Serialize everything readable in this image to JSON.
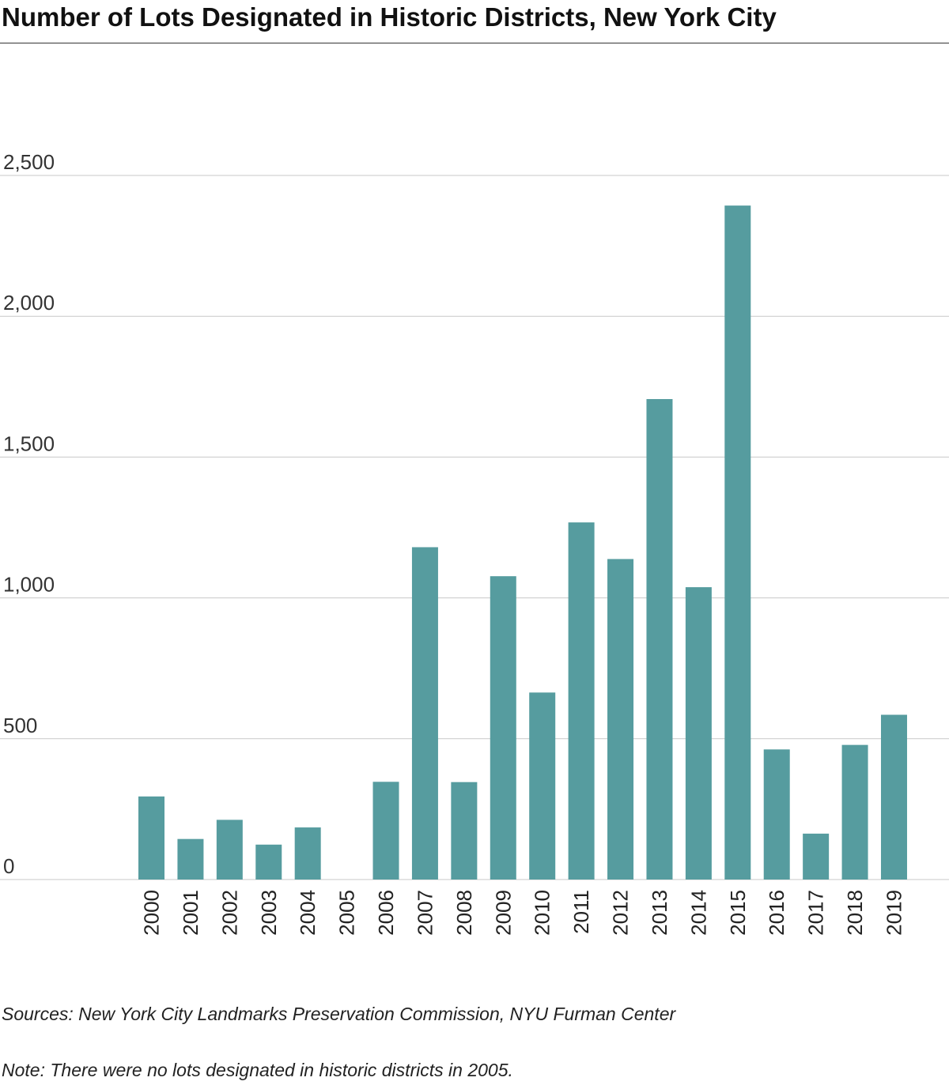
{
  "chart_data": {
    "type": "bar",
    "title": "Number of Lots Designated in Historic Districts, New York City",
    "categories": [
      "2000",
      "2001",
      "2002",
      "2003",
      "2004",
      "2005",
      "2006",
      "2007",
      "2008",
      "2009",
      "2010",
      "2011",
      "2012",
      "2013",
      "2014",
      "2015",
      "2016",
      "2017",
      "2018",
      "2019"
    ],
    "values": [
      295,
      144,
      212,
      124,
      185,
      0,
      347,
      1180,
      346,
      1077,
      664,
      1268,
      1138,
      1706,
      1038,
      2393,
      462,
      163,
      478,
      585
    ],
    "xlabel": "",
    "ylabel": "",
    "ylim": [
      0,
      2500
    ],
    "yticks": [
      0,
      500,
      1000,
      1500,
      2000,
      2500
    ],
    "ytick_labels": [
      "0",
      "500",
      "1,000",
      "1,500",
      "2,000",
      "2,500"
    ],
    "grid": true,
    "legend": "none",
    "bar_color": "#569c9f",
    "grid_color": "#c8c8c8"
  },
  "footer": {
    "sources": "Sources: New York City Landmarks Preservation Commission, NYU Furman Center",
    "note": "Note: There were no lots designated in historic districts in 2005."
  }
}
